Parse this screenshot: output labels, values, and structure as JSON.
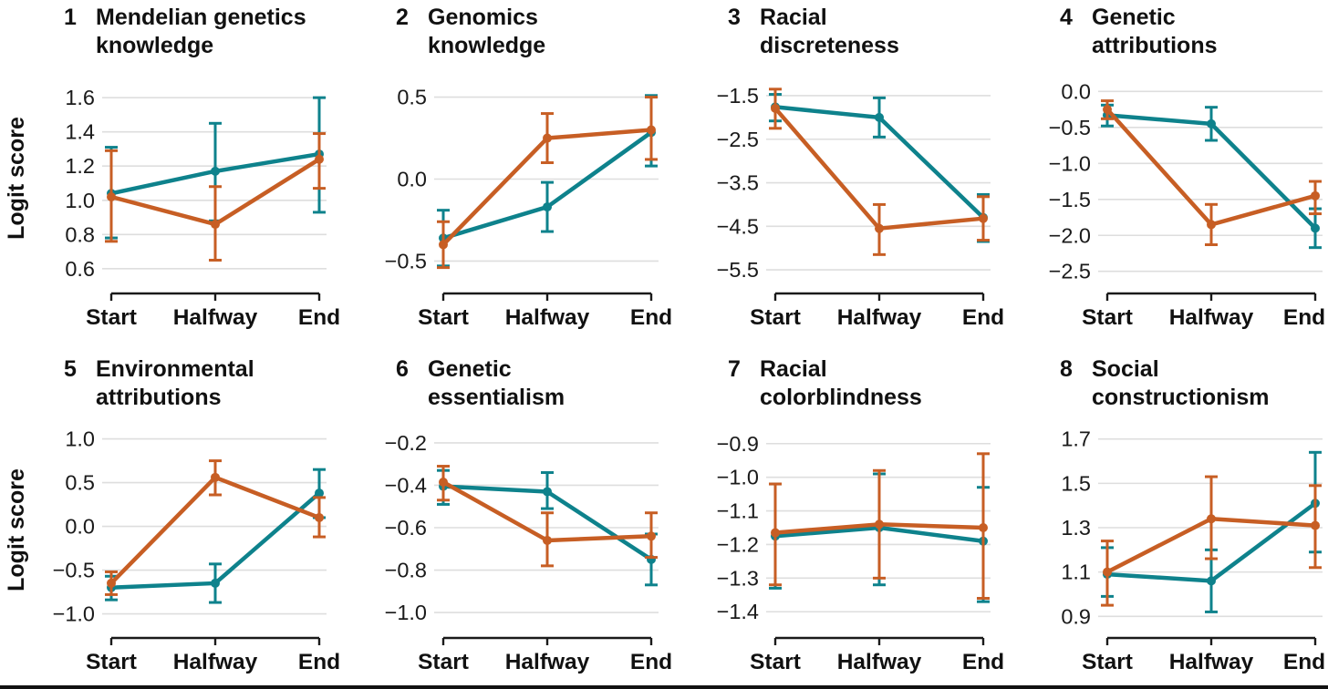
{
  "figure": {
    "ylabel": "Logit score",
    "x_categories": [
      "Start",
      "Halfway",
      "End"
    ],
    "colors": {
      "teal": "#0E828C",
      "orange": "#C75E24",
      "gridline": "#DEDEDE",
      "axis": "#1A1A1A",
      "text": "#111111",
      "bottom_border": "#111111"
    }
  },
  "chart_data": [
    {
      "type": "line",
      "number": "1",
      "title": "Mendelian genetics knowledge",
      "title_lines": [
        "Mendelian genetics",
        "knowledge"
      ],
      "x": [
        "Start",
        "Halfway",
        "End"
      ],
      "ylabel": "Logit score",
      "yticks": [
        1.6,
        1.4,
        1.2,
        1.0,
        0.8,
        0.6
      ],
      "ylim": [
        0.53,
        1.67
      ],
      "grid": true,
      "legend": "none",
      "series": [
        {
          "name": "teal",
          "values": [
            1.04,
            1.17,
            1.27
          ],
          "err_low": [
            0.78,
            0.88,
            0.93
          ],
          "err_high": [
            1.31,
            1.45,
            1.6
          ]
        },
        {
          "name": "orange",
          "values": [
            1.02,
            0.86,
            1.24
          ],
          "err_low": [
            0.76,
            0.65,
            1.07
          ],
          "err_high": [
            1.29,
            1.08,
            1.39
          ]
        }
      ]
    },
    {
      "type": "line",
      "number": "2",
      "title": "Genomics knowledge",
      "title_lines": [
        "Genomics",
        "knowledge"
      ],
      "x": [
        "Start",
        "Halfway",
        "End"
      ],
      "yticks": [
        0.5,
        0.0,
        -0.5
      ],
      "ylim": [
        -0.62,
        0.57
      ],
      "grid": true,
      "legend": "none",
      "series": [
        {
          "name": "teal",
          "values": [
            -0.36,
            -0.17,
            0.285
          ],
          "err_low": [
            -0.53,
            -0.32,
            0.08
          ],
          "err_high": [
            -0.19,
            -0.02,
            0.51
          ]
        },
        {
          "name": "orange",
          "values": [
            -0.4,
            0.25,
            0.3
          ],
          "err_low": [
            -0.54,
            0.1,
            0.12
          ],
          "err_high": [
            -0.26,
            0.4,
            0.5
          ]
        }
      ]
    },
    {
      "type": "line",
      "number": "3",
      "title": "Racial discreteness",
      "title_lines": [
        "Racial",
        "discreteness"
      ],
      "x": [
        "Start",
        "Halfway",
        "End"
      ],
      "yticks": [
        -1.5,
        -2.5,
        -3.5,
        -4.5,
        -5.5
      ],
      "ylim": [
        -5.75,
        -1.27
      ],
      "grid": true,
      "legend": "none",
      "series": [
        {
          "name": "teal",
          "values": [
            -1.76,
            -2.0,
            -4.3
          ],
          "err_low": [
            -2.08,
            -2.45,
            -4.85
          ],
          "err_high": [
            -1.47,
            -1.55,
            -3.77
          ]
        },
        {
          "name": "orange",
          "values": [
            -1.79,
            -4.55,
            -4.32
          ],
          "err_low": [
            -2.25,
            -5.15,
            -4.82
          ],
          "err_high": [
            -1.35,
            -4.0,
            -3.82
          ]
        }
      ]
    },
    {
      "type": "line",
      "number": "4",
      "title": "Genetic attributions",
      "title_lines": [
        "Genetic",
        "attributions"
      ],
      "x": [
        "Start",
        "Halfway",
        "End"
      ],
      "yticks": [
        0.0,
        -0.5,
        -1.0,
        -1.5,
        -2.0,
        -2.5
      ],
      "ylim": [
        -2.63,
        0.08
      ],
      "grid": true,
      "legend": "none",
      "series": [
        {
          "name": "teal",
          "values": [
            -0.33,
            -0.45,
            -1.9
          ],
          "err_low": [
            -0.48,
            -0.68,
            -2.17
          ],
          "err_high": [
            -0.19,
            -0.22,
            -1.63
          ]
        },
        {
          "name": "orange",
          "values": [
            -0.25,
            -1.85,
            -1.45
          ],
          "err_low": [
            -0.38,
            -2.13,
            -1.7
          ],
          "err_high": [
            -0.13,
            -1.57,
            -1.25
          ]
        }
      ]
    },
    {
      "type": "line",
      "number": "5",
      "title": "Environmental attributions",
      "title_lines": [
        "Environmental",
        "attributions"
      ],
      "x": [
        "Start",
        "Halfway",
        "End"
      ],
      "ylabel": "Logit score",
      "yticks": [
        1.0,
        0.5,
        0.0,
        -0.5,
        -1.0
      ],
      "ylim": [
        -1.13,
        1.1
      ],
      "grid": true,
      "legend": "none",
      "series": [
        {
          "name": "teal",
          "values": [
            -0.7,
            -0.65,
            0.38
          ],
          "err_low": [
            -0.84,
            -0.87,
            0.1
          ],
          "err_high": [
            -0.57,
            -0.43,
            0.65
          ]
        },
        {
          "name": "orange",
          "values": [
            -0.65,
            0.56,
            0.1
          ],
          "err_low": [
            -0.78,
            0.36,
            -0.12
          ],
          "err_high": [
            -0.52,
            0.75,
            0.33
          ]
        }
      ]
    },
    {
      "type": "line",
      "number": "6",
      "title": "Genetic essentialism",
      "title_lines": [
        "Genetic",
        "essentialism"
      ],
      "x": [
        "Start",
        "Halfway",
        "End"
      ],
      "yticks": [
        -0.2,
        -0.4,
        -0.6,
        -0.8,
        -1.0
      ],
      "ylim": [
        -1.06,
        -0.14
      ],
      "grid": true,
      "legend": "none",
      "series": [
        {
          "name": "teal",
          "values": [
            -0.405,
            -0.43,
            -0.75
          ],
          "err_low": [
            -0.49,
            -0.51,
            -0.87
          ],
          "err_high": [
            -0.33,
            -0.34,
            -0.63
          ]
        },
        {
          "name": "orange",
          "values": [
            -0.385,
            -0.66,
            -0.64
          ],
          "err_low": [
            -0.47,
            -0.78,
            -0.74
          ],
          "err_high": [
            -0.31,
            -0.53,
            -0.53
          ]
        }
      ]
    },
    {
      "type": "line",
      "number": "7",
      "title": "Racial colorblindness",
      "title_lines": [
        "Racial",
        "colorblindness"
      ],
      "x": [
        "Start",
        "Halfway",
        "End"
      ],
      "yticks": [
        -0.9,
        -1.0,
        -1.1,
        -1.2,
        -1.3,
        -1.4
      ],
      "ylim": [
        -1.44,
        -0.86
      ],
      "grid": true,
      "legend": "none",
      "series": [
        {
          "name": "teal",
          "values": [
            -1.175,
            -1.15,
            -1.19
          ],
          "err_low": [
            -1.33,
            -1.32,
            -1.37
          ],
          "err_high": [
            -1.02,
            -0.99,
            -1.03
          ]
        },
        {
          "name": "orange",
          "values": [
            -1.165,
            -1.14,
            -1.15
          ],
          "err_low": [
            -1.32,
            -1.3,
            -1.36
          ],
          "err_high": [
            -1.02,
            -0.98,
            -0.93
          ]
        }
      ]
    },
    {
      "type": "line",
      "number": "8",
      "title": "Social constructionism",
      "title_lines": [
        "Social",
        "constructionism"
      ],
      "x": [
        "Start",
        "Halfway",
        "End"
      ],
      "yticks": [
        1.7,
        1.5,
        1.3,
        1.1,
        0.9
      ],
      "ylim": [
        0.86,
        1.74
      ],
      "grid": true,
      "legend": "none",
      "series": [
        {
          "name": "teal",
          "values": [
            1.09,
            1.06,
            1.41
          ],
          "err_low": [
            0.99,
            0.92,
            1.19
          ],
          "err_high": [
            1.21,
            1.2,
            1.64
          ]
        },
        {
          "name": "orange",
          "values": [
            1.1,
            1.34,
            1.31
          ],
          "err_low": [
            0.95,
            1.16,
            1.12
          ],
          "err_high": [
            1.24,
            1.53,
            1.49
          ]
        }
      ]
    }
  ]
}
